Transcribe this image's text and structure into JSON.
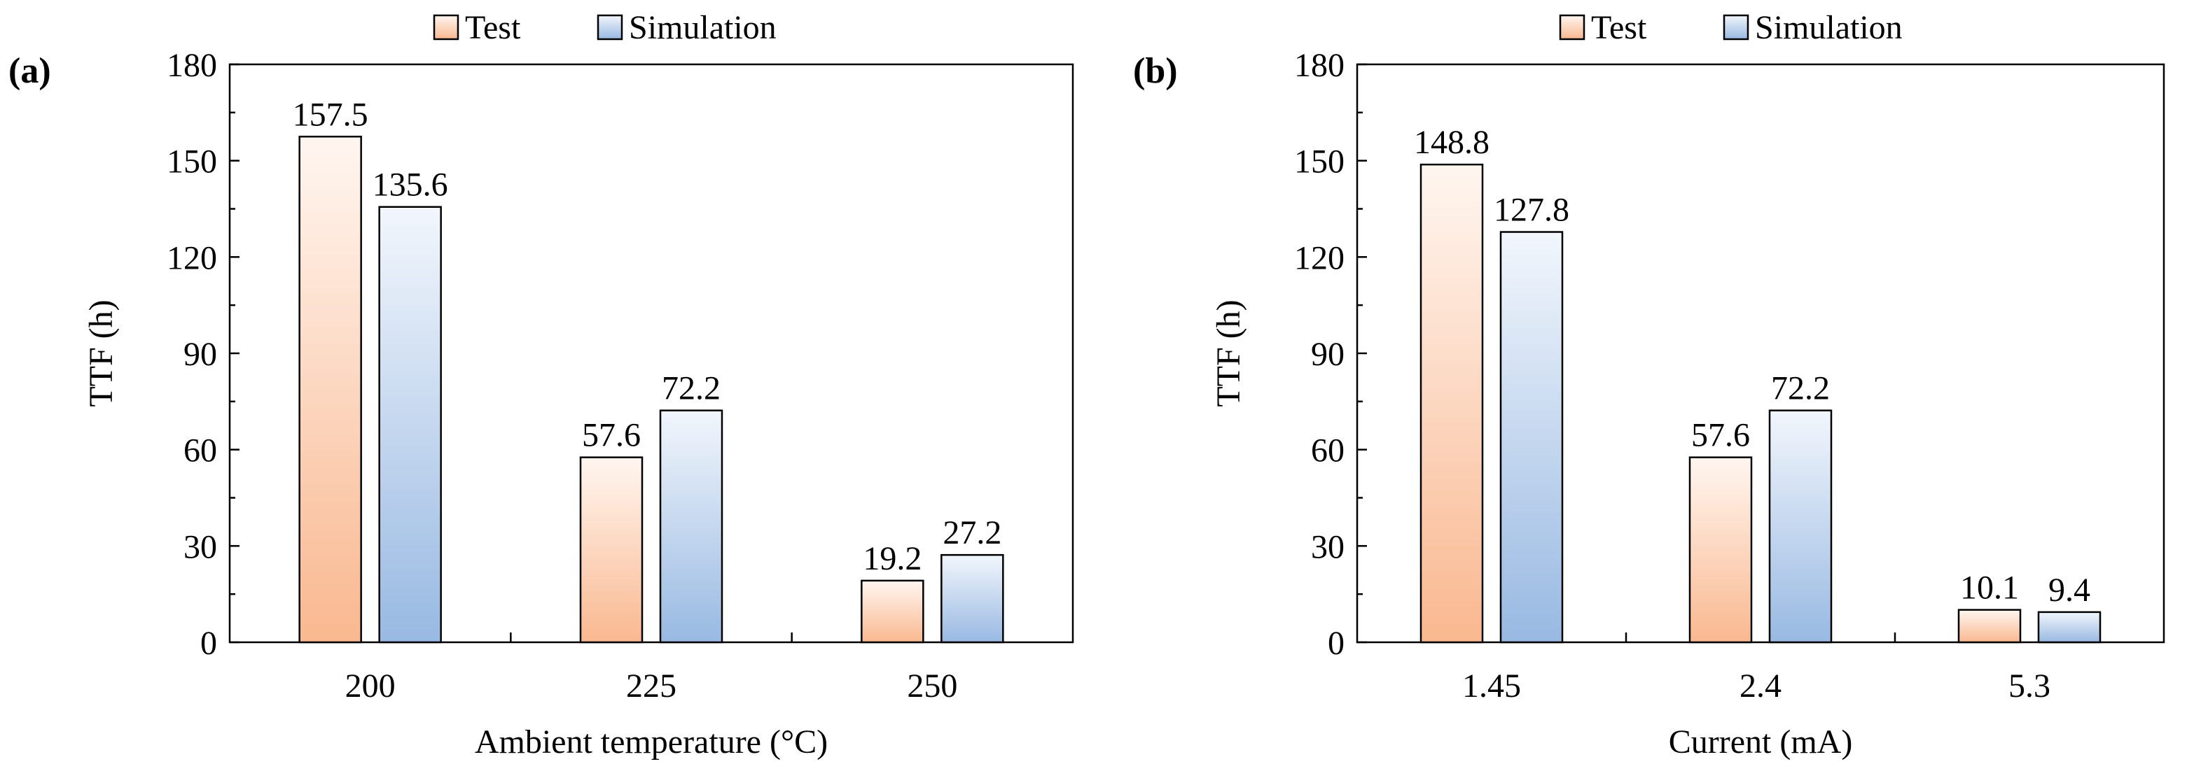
{
  "chart_data": [
    {
      "type": "bar",
      "panel_label": "(a)",
      "categories": [
        "200",
        "225",
        "250"
      ],
      "series": [
        {
          "name": "Test",
          "values": [
            157.5,
            57.6,
            19.2
          ],
          "labels": [
            "157.5",
            "57.6",
            "19.2"
          ]
        },
        {
          "name": "Simulation",
          "values": [
            135.6,
            72.2,
            27.2
          ],
          "labels": [
            "135.6",
            "72.2",
            "27.2"
          ]
        }
      ],
      "xlabel": "Ambient temperature (°C)",
      "ylabel": "TTF (h)",
      "ylim": [
        0,
        180
      ],
      "yticks": [
        "0",
        "30",
        "60",
        "90",
        "120",
        "150",
        "180"
      ],
      "legend": "top-center"
    },
    {
      "type": "bar",
      "panel_label": "(b)",
      "categories": [
        "1.45",
        "2.4",
        "5.3"
      ],
      "series": [
        {
          "name": "Test",
          "values": [
            148.8,
            57.6,
            10.1
          ],
          "labels": [
            "148.8",
            "57.6",
            "10.1"
          ]
        },
        {
          "name": "Simulation",
          "values": [
            127.8,
            72.2,
            9.4
          ],
          "labels": [
            "127.8",
            "72.2",
            "9.4"
          ]
        }
      ],
      "xlabel": "Current (mA)",
      "ylabel": "TTF (h)",
      "ylim": [
        0,
        180
      ],
      "yticks": [
        "0",
        "30",
        "60",
        "90",
        "120",
        "150",
        "180"
      ],
      "legend": "top-center"
    }
  ],
  "colors": {
    "test_light": "#fff6f0",
    "test_dark": "#f9b890",
    "sim_light": "#f2f6fc",
    "sim_dark": "#98b9e2",
    "axis": "#000000"
  }
}
